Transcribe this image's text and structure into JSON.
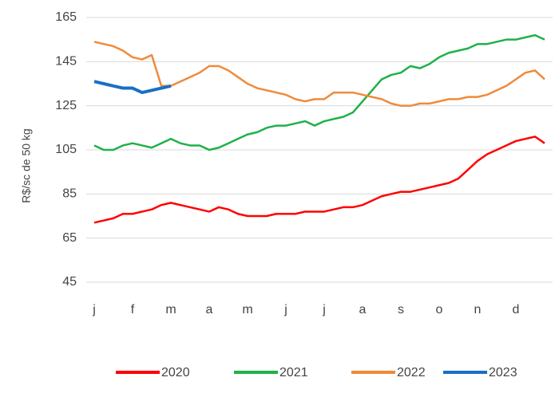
{
  "chart_data": {
    "type": "line",
    "y_label": "R$/sc de 50 kg",
    "categories": [
      "j",
      null,
      null,
      null,
      "f",
      null,
      null,
      null,
      "m",
      null,
      null,
      null,
      "a",
      null,
      null,
      null,
      "m",
      null,
      null,
      null,
      "j",
      null,
      null,
      null,
      "j",
      null,
      null,
      null,
      "a",
      null,
      null,
      null,
      "s",
      null,
      null,
      null,
      "o",
      null,
      null,
      null,
      "n",
      null,
      null,
      null,
      "d",
      null,
      null,
      null
    ],
    "series": [
      {
        "name": "2020",
        "color": "#ff0000",
        "values": [
          72,
          73,
          74,
          76,
          76,
          77,
          78,
          80,
          81,
          80,
          79,
          78,
          77,
          79,
          78,
          76,
          75,
          75,
          75,
          76,
          76,
          76,
          77,
          77,
          77,
          78,
          79,
          79,
          80,
          82,
          84,
          85,
          86,
          86,
          87,
          88,
          89,
          90,
          92,
          96,
          100,
          103,
          105,
          107,
          109,
          110,
          111,
          108
        ]
      },
      {
        "name": "2021",
        "color": "#1fb14a",
        "values": [
          107,
          105,
          105,
          107,
          108,
          107,
          106,
          108,
          110,
          108,
          107,
          107,
          105,
          106,
          108,
          110,
          112,
          113,
          115,
          116,
          116,
          117,
          118,
          116,
          118,
          119,
          120,
          122,
          127,
          132,
          137,
          139,
          140,
          143,
          142,
          144,
          147,
          149,
          150,
          151,
          153,
          153,
          154,
          155,
          155,
          156,
          157,
          155
        ]
      },
      {
        "name": "2022",
        "color": "#f08a3a",
        "values": [
          154,
          153,
          152,
          150,
          147,
          146,
          148,
          134,
          134,
          136,
          138,
          140,
          143,
          143,
          141,
          138,
          135,
          133,
          132,
          131,
          130,
          128,
          127,
          128,
          128,
          131,
          131,
          131,
          130,
          129,
          128,
          126,
          125,
          125,
          126,
          126,
          127,
          128,
          128,
          129,
          129,
          130,
          132,
          134,
          137,
          140,
          141,
          137
        ]
      },
      {
        "name": "2023",
        "color": "#1a6fc4",
        "values": [
          136,
          135,
          134,
          133,
          133,
          131,
          132,
          133,
          134,
          null,
          null,
          null,
          null,
          null,
          null,
          null,
          null,
          null,
          null,
          null,
          null,
          null,
          null,
          null,
          null,
          null,
          null,
          null,
          null,
          null,
          null,
          null,
          null,
          null,
          null,
          null,
          null,
          null,
          null,
          null,
          null,
          null,
          null,
          null,
          null,
          null,
          null,
          null
        ]
      }
    ],
    "ylim": [
      45,
      165
    ],
    "yticks": [
      45,
      65,
      85,
      105,
      125,
      145,
      165
    ],
    "grid": true
  }
}
